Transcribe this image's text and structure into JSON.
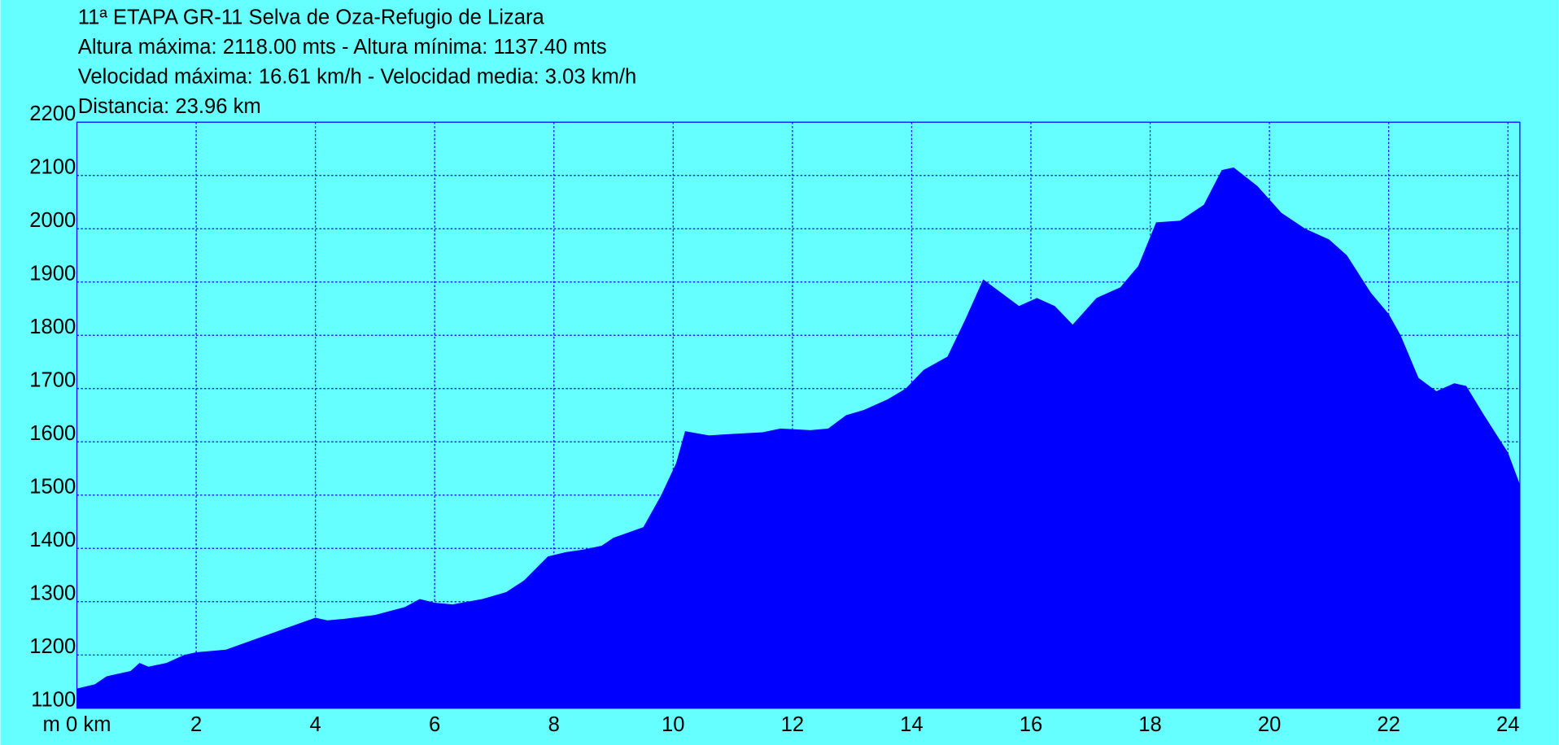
{
  "chart_data": {
    "type": "area",
    "title_lines": [
      "11ª ETAPA GR-11 Selva de Oza-Refugio de Lizara",
      "Altura máxima: 2118.00 mts - Altura mínima: 1137.40 mts",
      "Velocidad máxima: 16.61 km/h - Velocidad media: 3.03 km/h",
      "Distancia: 23.96 km"
    ],
    "x": [
      0,
      0.3,
      0.5,
      0.9,
      1.05,
      1.2,
      1.5,
      1.8,
      2.0,
      2.5,
      3,
      3.5,
      4,
      4.2,
      4.5,
      5,
      5.5,
      5.75,
      6,
      6.3,
      6.8,
      7.2,
      7.5,
      7.9,
      8.2,
      8.5,
      8.8,
      9,
      9.5,
      9.8,
      10.05,
      10.2,
      10.6,
      11,
      11.5,
      11.8,
      12.3,
      12.6,
      12.9,
      13.2,
      13.6,
      13.9,
      14.2,
      14.6,
      14.9,
      15.2,
      15.5,
      15.8,
      16.1,
      16.4,
      16.7,
      17.1,
      17.5,
      17.8,
      18.1,
      18.5,
      18.9,
      19.2,
      19.4,
      19.8,
      20.2,
      20.6,
      21,
      21.3,
      21.7,
      22,
      22.2,
      22.5,
      22.8,
      23.1,
      23.3,
      23.6,
      24,
      24.2
    ],
    "values": [
      1137,
      1145,
      1160,
      1170,
      1185,
      1178,
      1185,
      1200,
      1205,
      1210,
      1230,
      1250,
      1270,
      1265,
      1268,
      1275,
      1290,
      1305,
      1298,
      1295,
      1305,
      1318,
      1340,
      1385,
      1393,
      1398,
      1405,
      1420,
      1440,
      1500,
      1560,
      1620,
      1612,
      1615,
      1618,
      1625,
      1622,
      1625,
      1650,
      1660,
      1680,
      1700,
      1735,
      1760,
      1830,
      1905,
      1880,
      1855,
      1870,
      1855,
      1820,
      1870,
      1890,
      1930,
      2012,
      2015,
      2045,
      2110,
      2115,
      2080,
      2030,
      2000,
      1980,
      1950,
      1880,
      1840,
      1800,
      1720,
      1695,
      1710,
      1705,
      1650,
      1580,
      1520
    ],
    "color": "#0000ff",
    "background": "#66ffff",
    "xlim": [
      0,
      24.2
    ],
    "xticks": [
      {
        "value": 0,
        "label": "m 0 km"
      },
      2,
      4,
      6,
      8,
      10,
      12,
      14,
      16,
      18,
      20,
      22,
      24
    ],
    "ylim": [
      1100,
      2200
    ],
    "yticks": [
      1100,
      1200,
      1300,
      1400,
      1500,
      1600,
      1700,
      1800,
      1900,
      2000,
      2100,
      2200
    ],
    "grid": true
  }
}
